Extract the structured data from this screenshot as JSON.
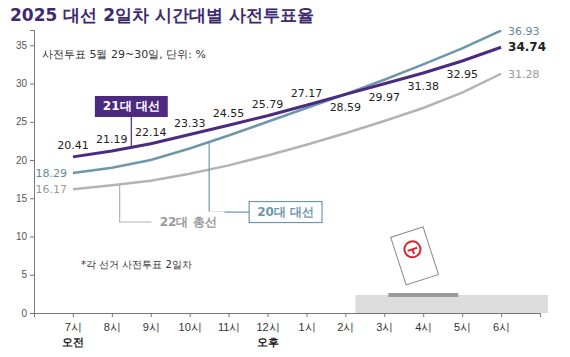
{
  "chart_data": {
    "type": "line",
    "title": "2025 대선 2일차 시간대별 사전투표율",
    "subtitle": "사전투표 5월 29~30일, 단위: %",
    "note": "*각 선거 사전투표 2일차",
    "categories": [
      "7시",
      "8시",
      "9시",
      "10시",
      "11시",
      "12시",
      "1시",
      "2시",
      "3시",
      "4시",
      "5시",
      "6시"
    ],
    "annotations": [
      {
        "text": "오전",
        "x": "7시"
      },
      {
        "text": "오후",
        "x": "12시"
      }
    ],
    "series": [
      {
        "name": "21대 대선",
        "color": "#4b2a80",
        "data_labels": true,
        "values": [
          20.41,
          21.19,
          22.14,
          23.33,
          24.55,
          25.79,
          27.17,
          28.59,
          29.97,
          31.38,
          32.95,
          34.74
        ]
      },
      {
        "name": "20대 대선",
        "color": "#6f97ab",
        "values": [
          18.29,
          19.0,
          20.0,
          21.5,
          23.2,
          25.0,
          26.8,
          28.6,
          30.5,
          32.5,
          34.6,
          36.93
        ],
        "value_labels": [
          "18.29",
          null,
          null,
          null,
          null,
          null,
          null,
          null,
          null,
          null,
          null,
          "36.93"
        ]
      },
      {
        "name": "22대 총선",
        "color": "#b3b3b3",
        "values": [
          16.17,
          16.7,
          17.3,
          18.2,
          19.3,
          20.6,
          22.0,
          23.5,
          25.1,
          26.8,
          28.8,
          31.28
        ],
        "value_labels": [
          "16.17",
          null,
          null,
          null,
          null,
          null,
          null,
          null,
          null,
          null,
          null,
          "31.28"
        ]
      }
    ],
    "ylim": [
      0,
      37
    ],
    "yticks": [
      0,
      5,
      10,
      15,
      20,
      25,
      30,
      35
    ],
    "grid": false
  }
}
